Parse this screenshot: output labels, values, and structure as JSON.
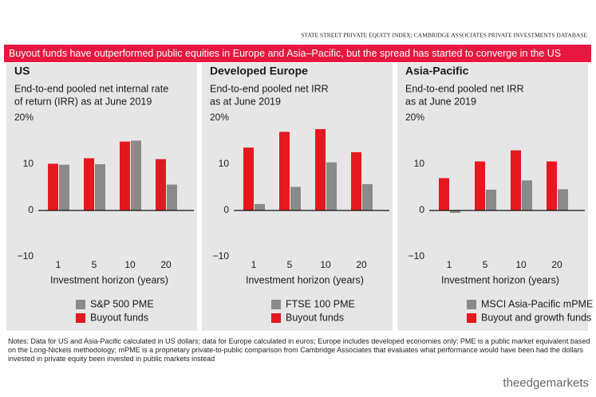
{
  "source": "STATE STREET PRIVATE EQUITY INDEX; CAMBRIDGE ASSOCIATES PRIVATE INVESTMENTS DATABASE",
  "headline": "Buyout funds have outperformed public equities in Europe and Asia–Pacific, but the spread has started to converge in the US",
  "chart_data": [
    {
      "type": "bar",
      "title": "US",
      "subtitle": [
        "End-to-end pooled net internal rate",
        "of return (IRR) as at June 2019"
      ],
      "xlabel": "Investment horizon (years)",
      "categories": [
        "1",
        "5",
        "10",
        "20"
      ],
      "series": [
        {
          "name": "S&P 500 PME",
          "color": "#8a8a8a",
          "values": [
            9.9,
            10.0,
            15.1,
            5.6
          ]
        },
        {
          "name": "Buyout funds",
          "color": "#e3191f",
          "values": [
            10.1,
            11.3,
            14.9,
            11.1
          ]
        }
      ],
      "ylim": [
        -10,
        20
      ],
      "yticks": [
        {
          "value": 20,
          "label": "20%"
        },
        10,
        0,
        {
          "value": -10,
          "label": "−10"
        }
      ],
      "grid": false
    },
    {
      "type": "bar",
      "title": "Developed Europe",
      "subtitle": [
        "End-to-end pooled net IRR",
        "as at June 2019"
      ],
      "xlabel": "Investment horizon (years)",
      "categories": [
        "1",
        "5",
        "10",
        "20"
      ],
      "series": [
        {
          "name": "FTSE 100 PME",
          "color": "#8a8a8a",
          "values": [
            1.4,
            5.1,
            10.4,
            5.7
          ]
        },
        {
          "name": "Buyout funds",
          "color": "#e3191f",
          "values": [
            13.6,
            17.0,
            17.6,
            12.6
          ]
        }
      ],
      "ylim": [
        -10,
        20
      ],
      "yticks": [
        {
          "value": 20,
          "label": "20%"
        },
        10,
        0,
        {
          "value": -10,
          "label": "−10"
        }
      ],
      "grid": false
    },
    {
      "type": "bar",
      "title": "Asia-Pacific",
      "subtitle": [
        "End-to-end pooled net IRR",
        "as at June 2019"
      ],
      "xlabel": "Investment horizon (years)",
      "categories": [
        "1",
        "5",
        "10",
        "20"
      ],
      "series": [
        {
          "name": "MSCI Asia-Pacific mPME",
          "color": "#8a8a8a",
          "values": [
            -0.5,
            4.5,
            6.5,
            4.6
          ]
        },
        {
          "name": "Buyout and growth funds",
          "color": "#e3191f",
          "values": [
            7.0,
            10.6,
            13.0,
            10.6
          ]
        }
      ],
      "ylim": [
        -10,
        20
      ],
      "yticks": [
        {
          "value": 20,
          "label": "20%"
        },
        10,
        0,
        {
          "value": -10,
          "label": "−10"
        }
      ],
      "grid": false
    }
  ],
  "notes": "Notes: Data for US and Asia-Pacific calculated in US dollars; data for Europe calculated in euros; Europe includes developed economies only; PME is a public market equivalent based on the Long-Nickels methodology; mPME is a proprietary private-to-public comparison from Cambridge Associates that evaluates what performance would have been had the dollars invested in private equity been invested in public markets instead",
  "watermark": "theedgemarkets"
}
